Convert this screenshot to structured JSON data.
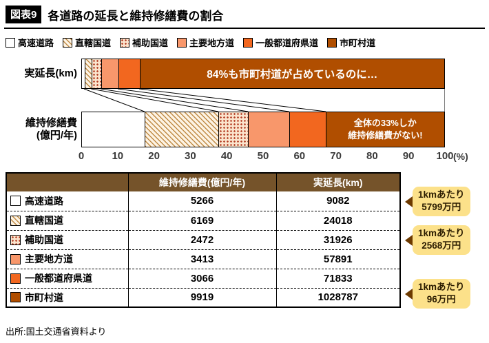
{
  "header": {
    "badge": "図表9",
    "title": "各道路の延長と維持修繕費の割合"
  },
  "legend": [
    {
      "label": "高速道路",
      "pattern": "white"
    },
    {
      "label": "直轄国道",
      "pattern": "hatch"
    },
    {
      "label": "補助国道",
      "pattern": "dots"
    },
    {
      "label": "主要地方道",
      "pattern": "salmon"
    },
    {
      "label": "一般都道府県道",
      "pattern": "orange"
    },
    {
      "label": "市町村道",
      "pattern": "brown"
    }
  ],
  "chart_data": {
    "type": "bar",
    "stacked": true,
    "orientation": "horizontal",
    "unit": "percent share",
    "categories": [
      "高速道路",
      "直轄国道",
      "補助国道",
      "主要地方道",
      "一般都道府県道",
      "市町村道"
    ],
    "rows": [
      {
        "label_lines": [
          "実延長(km)"
        ],
        "values": [
          9082,
          24018,
          31926,
          57891,
          71833,
          1028787
        ],
        "annotation_lines": [
          "84%も市町村道が占めているのに…"
        ]
      },
      {
        "label_lines": [
          "維持修繕費",
          "(億円/年)"
        ],
        "values": [
          5266,
          6169,
          2472,
          3413,
          3066,
          9919
        ],
        "annotation_lines": [
          "全体の33%しか",
          "維持修繕費がない!"
        ]
      }
    ],
    "x_ticks": [
      "0",
      "10",
      "20",
      "30",
      "40",
      "50",
      "60",
      "70",
      "80",
      "90",
      "100"
    ],
    "x_unit": "(%)",
    "xlim": [
      0,
      100
    ]
  },
  "table": {
    "headers": [
      "",
      "維持修繕費(億円/年)",
      "実延長(km)"
    ],
    "rows": [
      {
        "name": "高速道路",
        "cost": "5266",
        "length": "9082"
      },
      {
        "name": "直轄国道",
        "cost": "6169",
        "length": "24018"
      },
      {
        "name": "補助国道",
        "cost": "2472",
        "length": "31926"
      },
      {
        "name": "主要地方道",
        "cost": "3413",
        "length": "57891"
      },
      {
        "name": "一般都道府県道",
        "cost": "3066",
        "length": "71833"
      },
      {
        "name": "市町村道",
        "cost": "9919",
        "length": "1028787"
      }
    ]
  },
  "callouts": [
    {
      "line1": "1kmあたり",
      "line2": "5799万円"
    },
    {
      "line1": "1kmあたり",
      "line2": "2568万円"
    },
    {
      "line1": "1kmあたり",
      "line2": "96万円"
    }
  ],
  "source": "出所:国土交通省資料より",
  "colors": {
    "municipal_road": "#b04e00",
    "prefectural_road": "#f2671f",
    "major_local_road": "#f8976b",
    "dots_fill": "#b33c22",
    "hatch_fill": "#bf8a45",
    "table_header_bg": "#75532a",
    "callout_bg": "#fce18a",
    "badge_bg": "#000000"
  }
}
